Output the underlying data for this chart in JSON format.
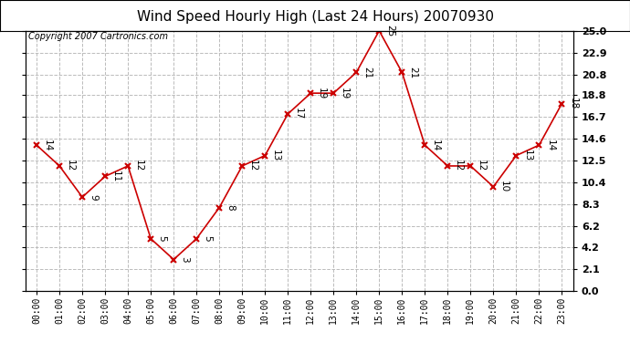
{
  "title": "Wind Speed Hourly High (Last 24 Hours) 20070930",
  "copyright": "Copyright 2007 Cartronics.com",
  "hours": [
    "00:00",
    "01:00",
    "02:00",
    "03:00",
    "04:00",
    "05:00",
    "06:00",
    "07:00",
    "08:00",
    "09:00",
    "10:00",
    "11:00",
    "12:00",
    "13:00",
    "14:00",
    "15:00",
    "16:00",
    "17:00",
    "18:00",
    "19:00",
    "20:00",
    "21:00",
    "22:00",
    "23:00"
  ],
  "values": [
    14,
    12,
    9,
    11,
    12,
    5,
    3,
    5,
    8,
    12,
    13,
    17,
    19,
    19,
    21,
    25,
    21,
    14,
    12,
    12,
    10,
    13,
    14,
    18
  ],
  "line_color": "#cc0000",
  "marker": "x",
  "marker_color": "#cc0000",
  "background_color": "#ffffff",
  "plot_bg_color": "#ffffff",
  "grid_color": "#bbbbbb",
  "ylim": [
    0.0,
    25.0
  ],
  "yticks": [
    0.0,
    2.1,
    4.2,
    6.2,
    8.3,
    10.4,
    12.5,
    14.6,
    16.7,
    18.8,
    20.8,
    22.9,
    25.0
  ],
  "title_fontsize": 11,
  "annotation_fontsize": 7.5,
  "copyright_fontsize": 7
}
